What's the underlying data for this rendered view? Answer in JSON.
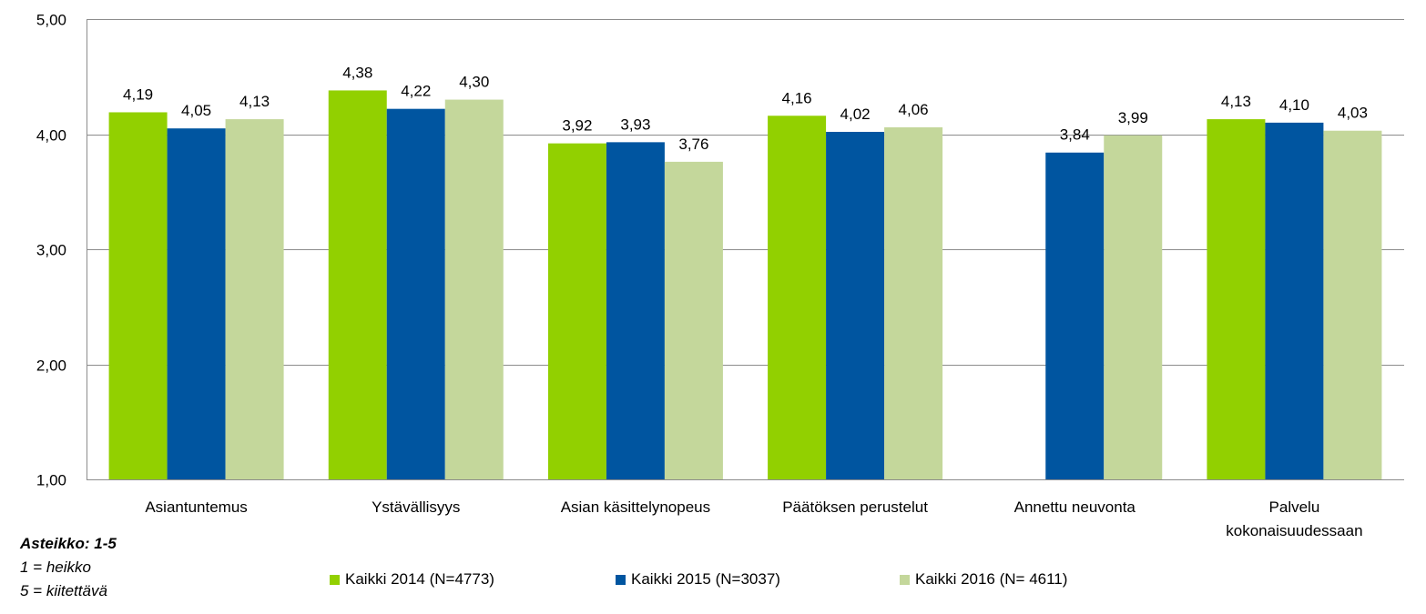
{
  "chart_data": {
    "type": "bar",
    "categories": [
      "Asiantuntemus",
      "Ystävällisyys",
      "Asian käsittelynopeus",
      "Päätöksen perustelut",
      "Annettu neuvonta",
      "Palvelu kokonaisuudessaan"
    ],
    "category_lines": [
      [
        "Asiantuntemus"
      ],
      [
        "Ystävällisyys"
      ],
      [
        "Asian käsittelynopeus"
      ],
      [
        "Päätöksen perustelut"
      ],
      [
        "Annettu neuvonta"
      ],
      [
        "Palvelu",
        "kokonaisuudessaan"
      ]
    ],
    "series": [
      {
        "name": "Kaikki 2014 (N=4773)",
        "color": "#92d000",
        "values": [
          4.19,
          4.38,
          3.92,
          4.16,
          null,
          4.13
        ]
      },
      {
        "name": "Kaikki 2015 (N=3037)",
        "color": "#0055a0",
        "values": [
          4.05,
          4.22,
          3.93,
          4.02,
          3.84,
          4.1
        ]
      },
      {
        "name": "Kaikki 2016 (N= 4611)",
        "color": "#c4d79b",
        "values": [
          4.13,
          4.3,
          3.76,
          4.06,
          3.99,
          4.03
        ]
      }
    ],
    "ylim": [
      1,
      5
    ],
    "yticks": [
      1,
      2,
      3,
      4,
      5
    ],
    "ytick_labels": [
      "1,00",
      "2,00",
      "3,00",
      "4,00",
      "5,00"
    ],
    "data_labels": [
      [
        "4,19",
        "4,38",
        "3,92",
        "4,16",
        "",
        "4,13"
      ],
      [
        "4,05",
        "4,22",
        "3,93",
        "4,02",
        "3,84",
        "4,10"
      ],
      [
        "4,13",
        "4,30",
        "3,76",
        "4,06",
        "3,99",
        "4,03"
      ]
    ],
    "grid": true,
    "legend_position": "bottom"
  },
  "notes": {
    "scale_title": "Asteikko: 1-5",
    "low": "1 = heikko",
    "high": "5 = kiitettävä"
  }
}
